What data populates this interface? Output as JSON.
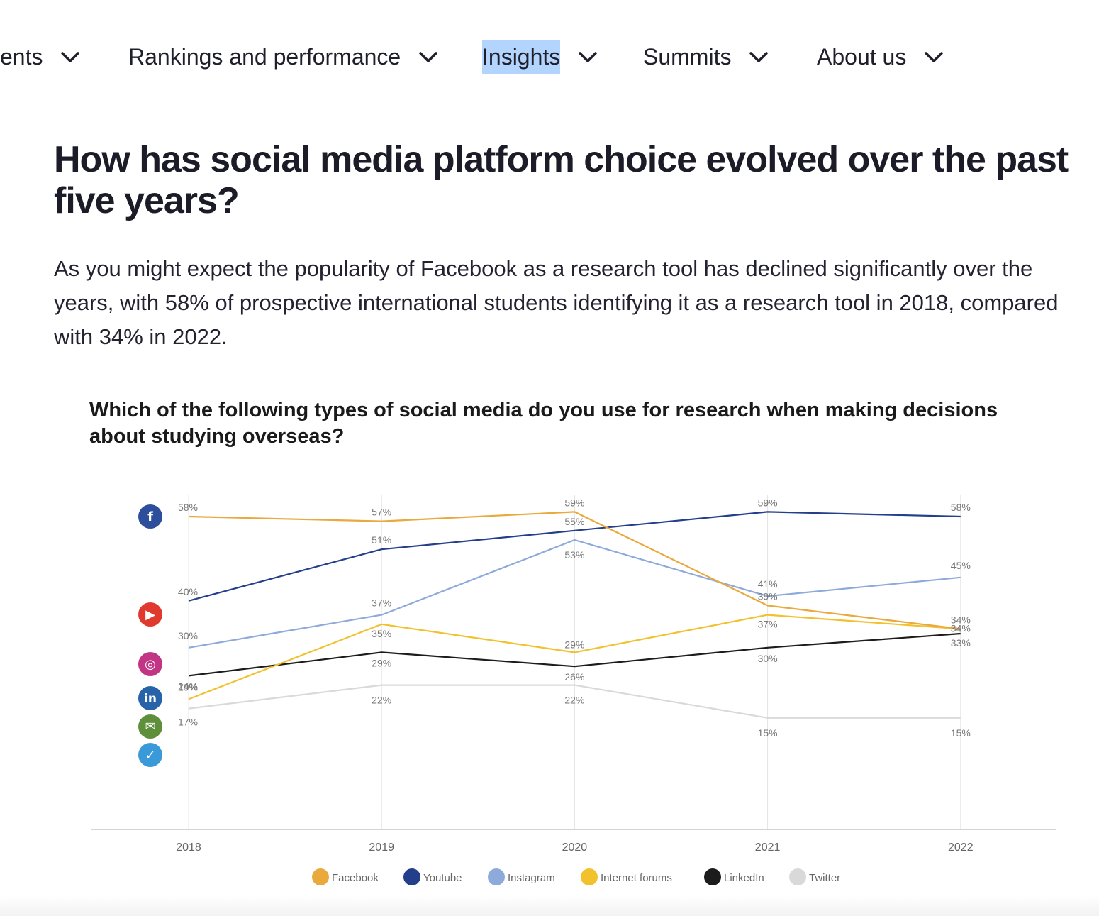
{
  "nav": {
    "items": [
      {
        "label": "ents"
      },
      {
        "label": "Rankings and performance"
      },
      {
        "label": "Insights"
      },
      {
        "label": "Summits"
      },
      {
        "label": "About us"
      }
    ]
  },
  "article": {
    "heading": "How has social media platform choice evolved over the past five years?",
    "paragraph": "As you might expect the popularity of Facebook as a research tool has declined significantly over the years, with 58% of prospective international students identifying it as a research tool in 2018, compared with 34% in 2022."
  },
  "chart_data": {
    "type": "line",
    "title": "Which of the following types of social media do you use for research when making decisions about studying overseas?",
    "x": [
      "2018",
      "2019",
      "2020",
      "2021",
      "2022"
    ],
    "xlabel": "",
    "ylabel": "",
    "grid": "vertical",
    "legend_position": "bottom",
    "series": [
      {
        "name": "Facebook",
        "values": [
          58,
          57,
          59,
          39,
          34
        ],
        "color": "#E9A93C",
        "icon": "facebook-icon"
      },
      {
        "name": "Youtube",
        "values": [
          40,
          51,
          55,
          59,
          58
        ],
        "color": "#233E8B",
        "icon": "youtube-icon"
      },
      {
        "name": "Instagram",
        "values": [
          30,
          37,
          53,
          41,
          45
        ],
        "color": "#8EAADB",
        "icon": "instagram-icon"
      },
      {
        "name": "Internet forums",
        "values": [
          19,
          35,
          29,
          37,
          34
        ],
        "color": "#F2C12E",
        "icon": "forum-icon"
      },
      {
        "name": "LinkedIn",
        "values": [
          24,
          29,
          26,
          30,
          33
        ],
        "color": "#1C1C1C",
        "icon": "linkedin-icon"
      },
      {
        "name": "Twitter",
        "values": [
          17,
          22,
          22,
          15,
          15
        ],
        "color": "#D9D9D9",
        "icon": "twitter-icon"
      }
    ],
    "data_labels": [
      {
        "series": "Facebook",
        "labels": [
          "58%",
          "57%",
          "59%",
          "39%",
          "34%"
        ]
      },
      {
        "series": "Youtube",
        "labels": [
          "40%",
          "51%",
          "55%",
          "59%",
          "58%"
        ]
      },
      {
        "series": "Instagram",
        "labels": [
          "30%",
          "37%",
          "53%",
          "41%",
          "45%"
        ]
      },
      {
        "series": "Internet forums",
        "labels": [
          "19%",
          "35%",
          "29%",
          "37%",
          "34%"
        ]
      },
      {
        "series": "LinkedIn",
        "labels": [
          "24%",
          "29%",
          "26%",
          "30%",
          "33%"
        ]
      },
      {
        "series": "Twitter",
        "labels": [
          "17%",
          "22%",
          "22%",
          "15%",
          "15%"
        ]
      }
    ]
  }
}
